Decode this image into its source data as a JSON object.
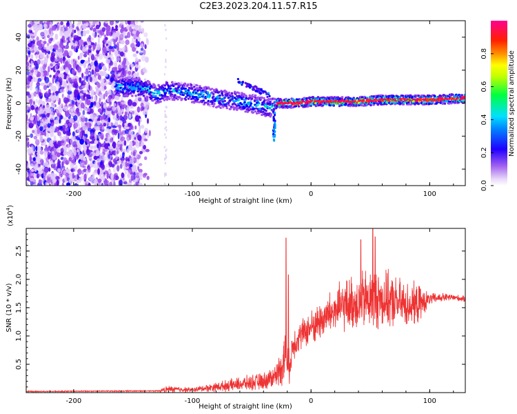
{
  "title": "C2E3.2023.204.11.57.R15",
  "top_panel": {
    "ylabel": "Frequency (Hz)",
    "xlabel": "Height of straight line (km)",
    "colorbar_label": "Normalized spectral amplitude"
  },
  "bottom_panel": {
    "ylabel": "SNR (10 * v/v)",
    "scale_label": "(x10",
    "scale_exp": "4",
    "scale_close": ")",
    "xlabel": "Height of straight line (km)"
  },
  "chart_data": [
    {
      "type": "heatmap",
      "xlabel": "Height of straight line (km)",
      "ylabel": "Frequency (Hz)",
      "xlim": [
        -240,
        130
      ],
      "ylim": [
        -50,
        50
      ],
      "xticks": [
        -200,
        -100,
        0,
        100
      ],
      "yticks": [
        -40,
        -20,
        0,
        20,
        40
      ],
      "colorbar": {
        "label": "Normalized spectral amplitude",
        "range": [
          0.0,
          1.0
        ],
        "ticks": [
          0.0,
          0.2,
          0.4,
          0.6,
          0.8
        ],
        "colors": [
          "#ffffff",
          "#d0b0f0",
          "#7020e0",
          "#1000ff",
          "#00c0ff",
          "#00ff60",
          "#ffff00",
          "#ff8000",
          "#ff0040",
          "#ff00a0"
        ]
      },
      "ridge": {
        "x": [
          -160,
          -140,
          -130,
          -120,
          -100,
          -80,
          -60,
          -45,
          -35,
          -28,
          -20,
          -10,
          0,
          20,
          40,
          60,
          80,
          100,
          130
        ],
        "freq": [
          10,
          9,
          5,
          8,
          6,
          3,
          1,
          -1,
          -3,
          0,
          0,
          0,
          1,
          1,
          1,
          2,
          2,
          2,
          3
        ]
      },
      "noise_region": {
        "x": [
          -240,
          -135
        ],
        "freq": [
          -50,
          50
        ]
      }
    },
    {
      "type": "line",
      "xlabel": "Height of straight line (km)",
      "ylabel": "SNR (10 * v/v)",
      "scale": "x10^4",
      "xlim": [
        -240,
        130
      ],
      "ylim": [
        0,
        2.9
      ],
      "xticks": [
        -200,
        -100,
        0,
        100
      ],
      "yticks": [
        0.5,
        1.0,
        1.5,
        2.0,
        2.5
      ],
      "color": "#ee3333",
      "envelope": {
        "x": [
          -240,
          -130,
          -120,
          -100,
          -80,
          -60,
          -40,
          -30,
          -25,
          -21,
          -19,
          -15,
          -10,
          0,
          10,
          20,
          30,
          40,
          50,
          60,
          70,
          80,
          90,
          100,
          110,
          120,
          130
        ],
        "mean": [
          0.02,
          0.03,
          0.06,
          0.05,
          0.1,
          0.15,
          0.2,
          0.3,
          0.45,
          0.7,
          0.4,
          0.85,
          1.0,
          1.15,
          1.3,
          1.45,
          1.55,
          1.6,
          1.65,
          1.65,
          1.6,
          1.55,
          1.55,
          1.65,
          1.68,
          1.68,
          1.65
        ],
        "spread": [
          0.01,
          0.01,
          0.06,
          0.04,
          0.08,
          0.12,
          0.15,
          0.2,
          0.3,
          0.6,
          0.3,
          0.3,
          0.25,
          0.3,
          0.35,
          0.4,
          0.45,
          0.5,
          0.55,
          0.5,
          0.45,
          0.4,
          0.35,
          0.1,
          0.08,
          0.06,
          0.05
        ]
      },
      "peaks": [
        {
          "x": -21,
          "y": 2.73
        },
        {
          "x": -19,
          "y": 2.08
        },
        {
          "x": 52,
          "y": 2.92
        },
        {
          "x": 54,
          "y": 2.75
        },
        {
          "x": 42,
          "y": 2.7
        }
      ]
    }
  ]
}
